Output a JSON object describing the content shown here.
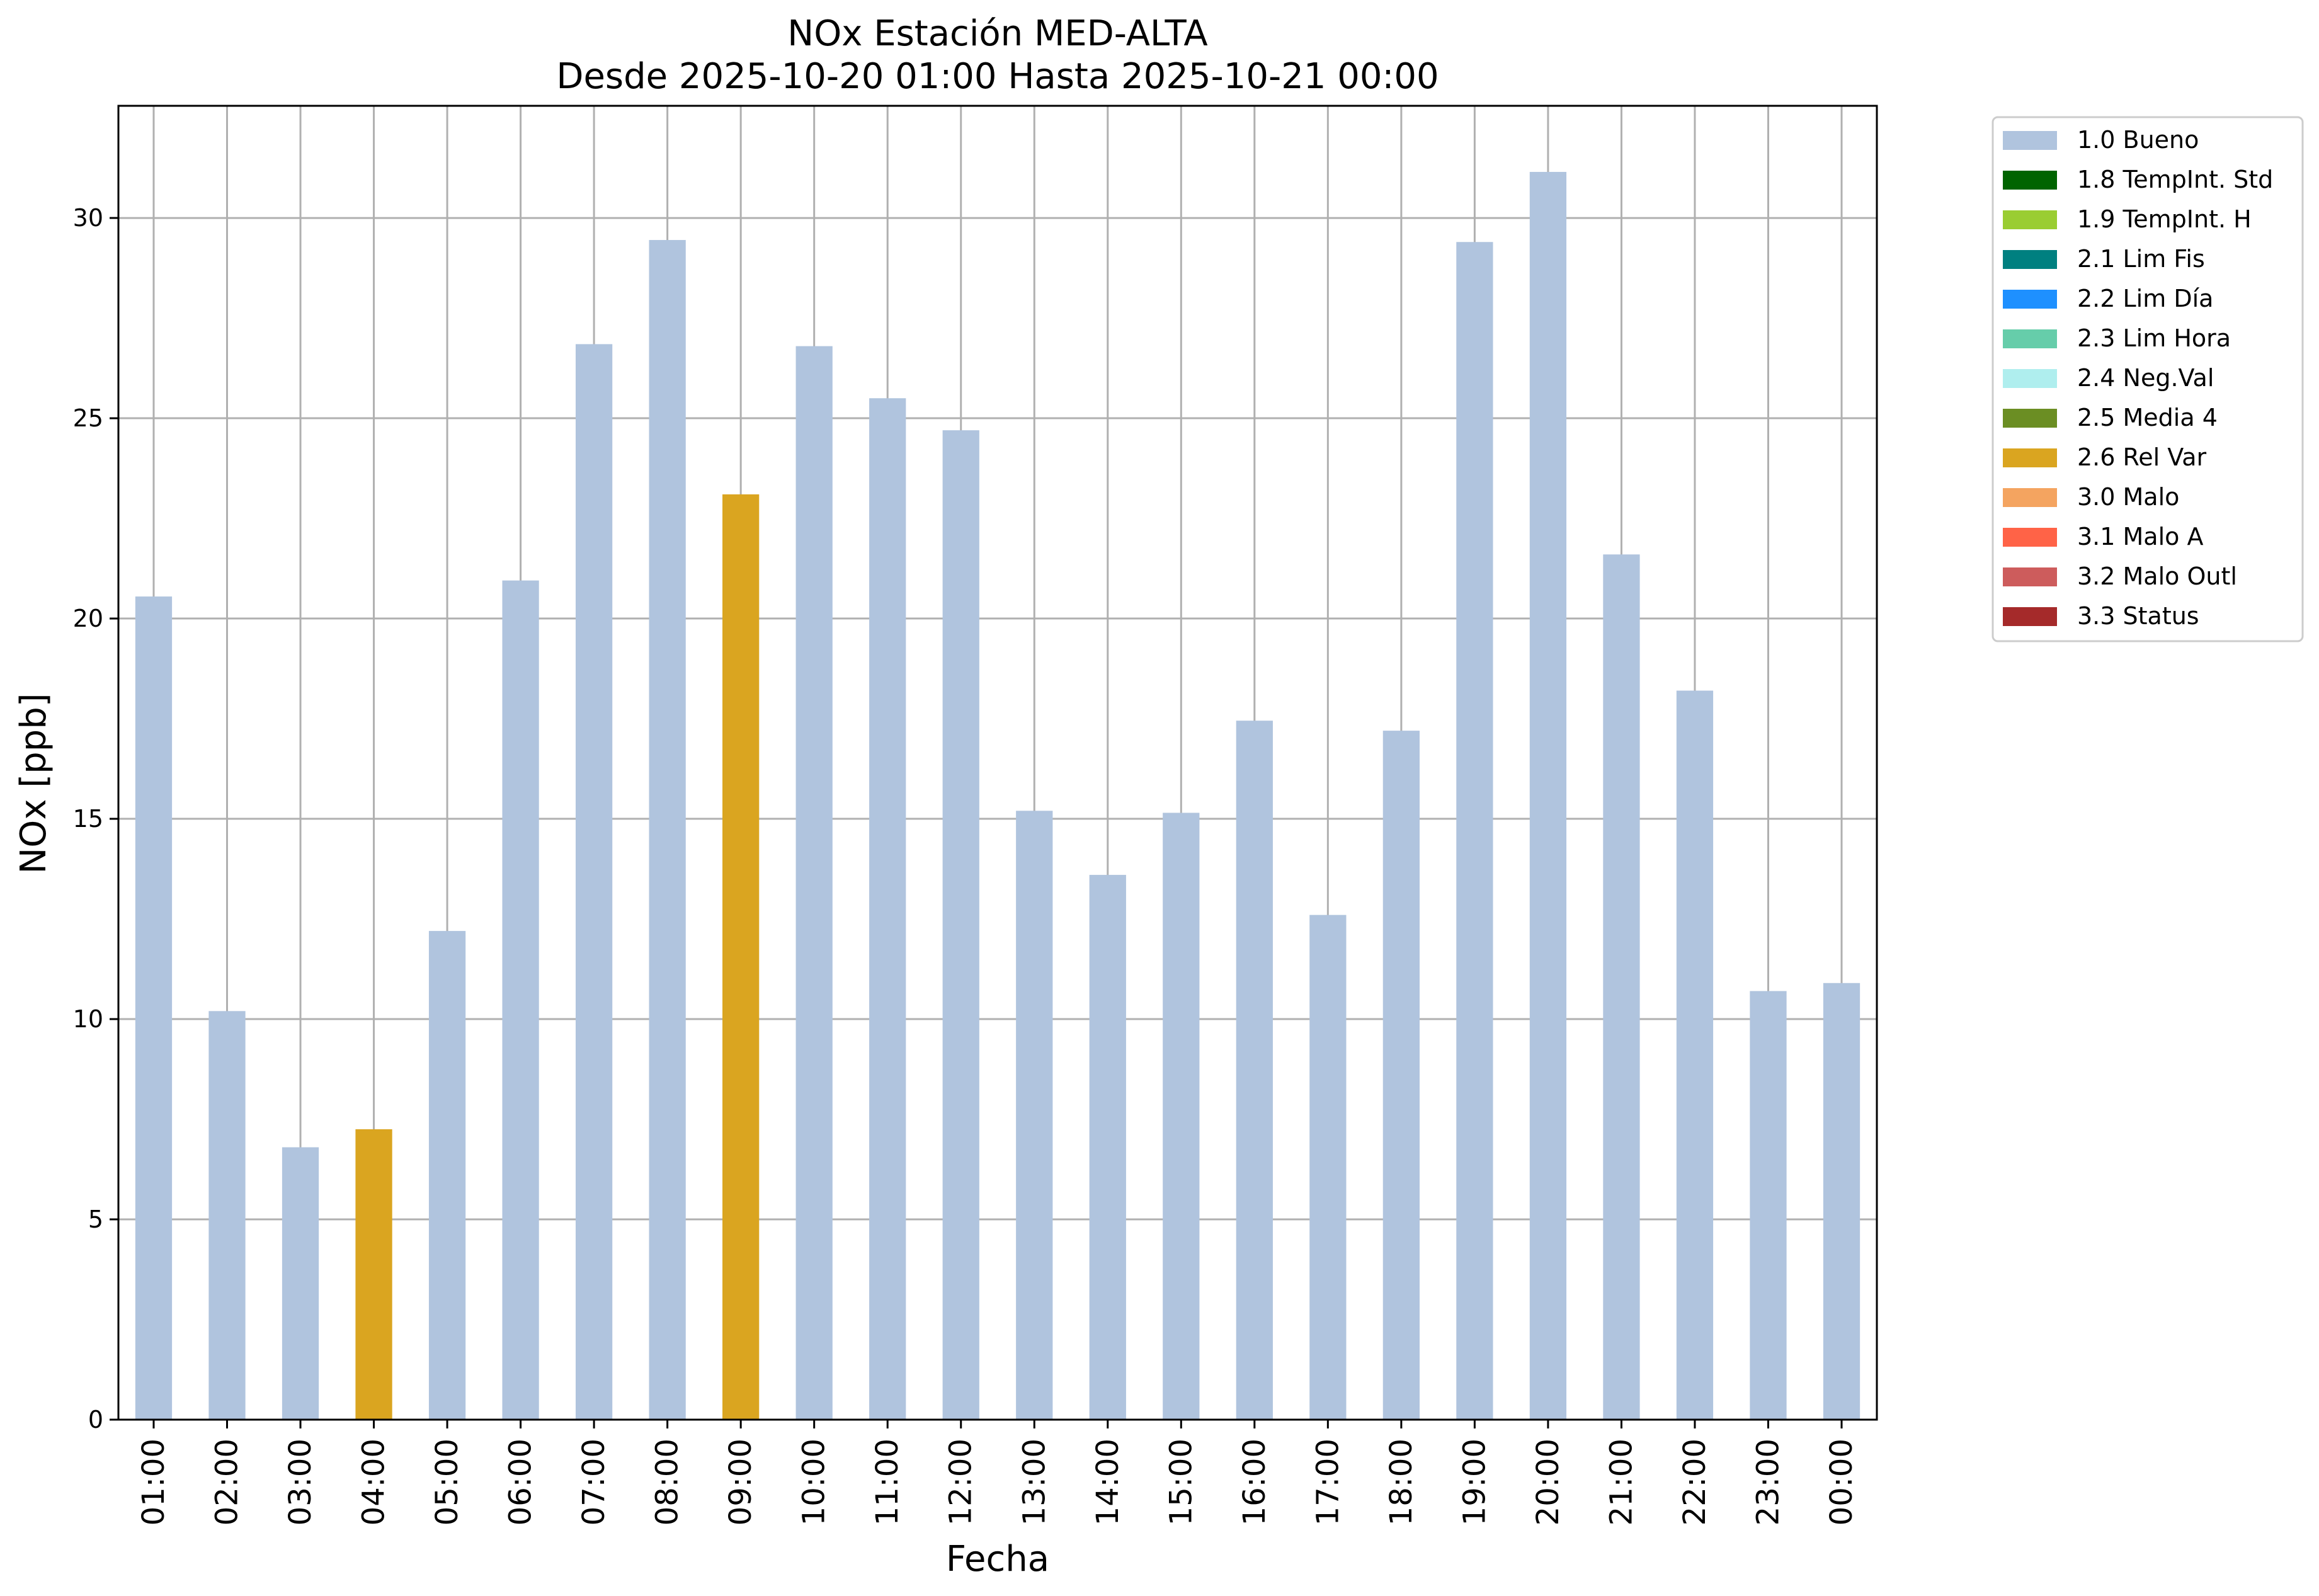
{
  "chart_data": {
    "type": "bar",
    "title": "NOx Estación MED-ALTA",
    "subtitle": "Desde 2025-10-20 01:00 Hasta 2025-10-21 00:00",
    "xlabel": "Fecha",
    "ylabel": "NOx [ppb]",
    "ylim": [
      0,
      32.8
    ],
    "yticks": [
      0,
      5,
      10,
      15,
      20,
      25,
      30
    ],
    "grid": true,
    "legend_position": "outside-top-right",
    "categories": [
      "01:00",
      "02:00",
      "03:00",
      "04:00",
      "05:00",
      "06:00",
      "07:00",
      "08:00",
      "09:00",
      "10:00",
      "11:00",
      "12:00",
      "13:00",
      "14:00",
      "15:00",
      "16:00",
      "17:00",
      "18:00",
      "19:00",
      "20:00",
      "21:00",
      "22:00",
      "23:00",
      "00:00"
    ],
    "values": [
      20.55,
      10.2,
      6.8,
      7.25,
      12.2,
      20.95,
      26.85,
      29.45,
      23.1,
      26.8,
      25.5,
      24.7,
      15.2,
      13.6,
      15.15,
      17.45,
      12.6,
      17.2,
      29.4,
      31.15,
      21.6,
      18.2,
      10.7,
      10.9
    ],
    "flags": [
      "1.0 Bueno",
      "1.0 Bueno",
      "1.0 Bueno",
      "2.6 Rel Var",
      "1.0 Bueno",
      "1.0 Bueno",
      "1.0 Bueno",
      "1.0 Bueno",
      "2.6 Rel Var",
      "1.0 Bueno",
      "1.0 Bueno",
      "1.0 Bueno",
      "1.0 Bueno",
      "1.0 Bueno",
      "1.0 Bueno",
      "1.0 Bueno",
      "1.0 Bueno",
      "1.0 Bueno",
      "1.0 Bueno",
      "1.0 Bueno",
      "1.0 Bueno",
      "1.0 Bueno",
      "1.0 Bueno",
      "1.0 Bueno"
    ],
    "legend": [
      {
        "label": "1.0 Bueno",
        "color": "#b0c4de"
      },
      {
        "label": "1.8 TempInt. Std",
        "color": "#006400"
      },
      {
        "label": "1.9 TempInt. H",
        "color": "#9acd32"
      },
      {
        "label": "2.1 Lim Fis",
        "color": "#008080"
      },
      {
        "label": "2.2 Lim Día",
        "color": "#1e90ff"
      },
      {
        "label": "2.3 Lim Hora",
        "color": "#66cdaa"
      },
      {
        "label": "2.4 Neg.Val",
        "color": "#afeeee"
      },
      {
        "label": "2.5 Media 4",
        "color": "#6b8e23"
      },
      {
        "label": "2.6 Rel Var",
        "color": "#daa520"
      },
      {
        "label": "3.0 Malo",
        "color": "#f4a460"
      },
      {
        "label": "3.1 Malo A",
        "color": "#ff6347"
      },
      {
        "label": "3.2 Malo Outl",
        "color": "#cd5c5c"
      },
      {
        "label": "3.3 Status",
        "color": "#a52a2a"
      }
    ]
  }
}
